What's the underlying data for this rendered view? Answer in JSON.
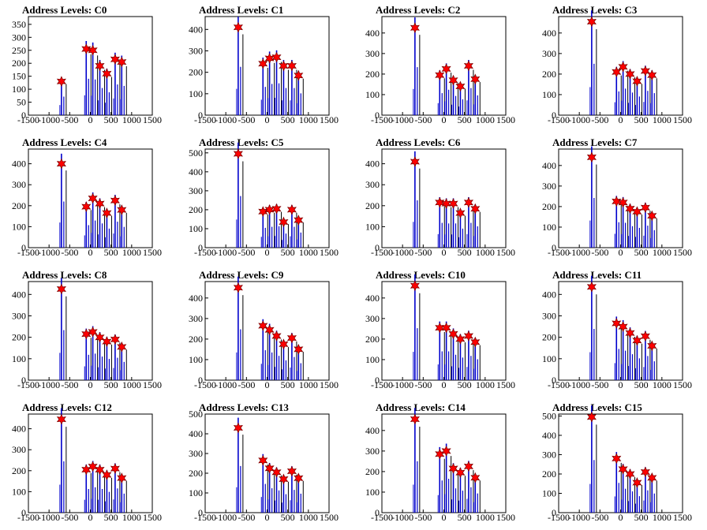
{
  "chart_data": [
    {
      "type": "bar",
      "title": "Address Levels: C0",
      "xlim": [
        -1500,
        1500
      ],
      "ylim": [
        0,
        380
      ],
      "yticks": [
        0,
        50,
        100,
        150,
        200,
        250,
        300,
        350
      ],
      "peaks": [
        {
          "x": -700,
          "y": 130
        },
        {
          "x": -100,
          "y": 255
        },
        {
          "x": 60,
          "y": 250
        },
        {
          "x": 230,
          "y": 190
        },
        {
          "x": 400,
          "y": 160
        },
        {
          "x": 600,
          "y": 215
        },
        {
          "x": 760,
          "y": 205
        }
      ]
    },
    {
      "type": "bar",
      "title": "Address Levels: C1",
      "xlim": [
        -1500,
        1500
      ],
      "ylim": [
        0,
        460
      ],
      "yticks": [
        0,
        100,
        200,
        300,
        400
      ],
      "peaks": [
        {
          "x": -700,
          "y": 410
        },
        {
          "x": -100,
          "y": 240
        },
        {
          "x": 60,
          "y": 265
        },
        {
          "x": 230,
          "y": 270
        },
        {
          "x": 400,
          "y": 230
        },
        {
          "x": 600,
          "y": 230
        },
        {
          "x": 760,
          "y": 185
        }
      ]
    },
    {
      "type": "bar",
      "title": "Address Levels: C2",
      "xlim": [
        -1500,
        1500
      ],
      "ylim": [
        0,
        480
      ],
      "yticks": [
        0,
        100,
        200,
        300,
        400
      ],
      "peaks": [
        {
          "x": -700,
          "y": 425
        },
        {
          "x": -100,
          "y": 195
        },
        {
          "x": 60,
          "y": 225
        },
        {
          "x": 230,
          "y": 170
        },
        {
          "x": 400,
          "y": 140
        },
        {
          "x": 600,
          "y": 240
        },
        {
          "x": 760,
          "y": 175
        }
      ]
    },
    {
      "type": "bar",
      "title": "Address Levels: C3",
      "xlim": [
        -1500,
        1500
      ],
      "ylim": [
        0,
        480
      ],
      "yticks": [
        0,
        100,
        200,
        300,
        400
      ],
      "peaks": [
        {
          "x": -700,
          "y": 455
        },
        {
          "x": -100,
          "y": 210
        },
        {
          "x": 60,
          "y": 235
        },
        {
          "x": 230,
          "y": 200
        },
        {
          "x": 400,
          "y": 165
        },
        {
          "x": 600,
          "y": 215
        },
        {
          "x": 760,
          "y": 195
        }
      ]
    },
    {
      "type": "bar",
      "title": "Address Levels: C4",
      "xlim": [
        -1500,
        1500
      ],
      "ylim": [
        0,
        470
      ],
      "yticks": [
        0,
        100,
        200,
        300,
        400
      ],
      "peaks": [
        {
          "x": -700,
          "y": 400
        },
        {
          "x": -100,
          "y": 195
        },
        {
          "x": 60,
          "y": 235
        },
        {
          "x": 230,
          "y": 210
        },
        {
          "x": 400,
          "y": 165
        },
        {
          "x": 600,
          "y": 225
        },
        {
          "x": 760,
          "y": 180
        }
      ]
    },
    {
      "type": "bar",
      "title": "Address Levels: C5",
      "xlim": [
        -1500,
        1500
      ],
      "ylim": [
        0,
        520
      ],
      "yticks": [
        0,
        100,
        200,
        300,
        400,
        500
      ],
      "peaks": [
        {
          "x": -700,
          "y": 495
        },
        {
          "x": -100,
          "y": 190
        },
        {
          "x": 60,
          "y": 200
        },
        {
          "x": 230,
          "y": 205
        },
        {
          "x": 400,
          "y": 135
        },
        {
          "x": 600,
          "y": 200
        },
        {
          "x": 760,
          "y": 145
        }
      ]
    },
    {
      "type": "bar",
      "title": "Address Levels: C6",
      "xlim": [
        -1500,
        1500
      ],
      "ylim": [
        0,
        470
      ],
      "yticks": [
        0,
        100,
        200,
        300,
        400
      ],
      "peaks": [
        {
          "x": -700,
          "y": 410
        },
        {
          "x": -100,
          "y": 215
        },
        {
          "x": 60,
          "y": 210
        },
        {
          "x": 230,
          "y": 210
        },
        {
          "x": 400,
          "y": 165
        },
        {
          "x": 600,
          "y": 215
        },
        {
          "x": 760,
          "y": 185
        }
      ]
    },
    {
      "type": "bar",
      "title": "Address Levels: C7",
      "xlim": [
        -1500,
        1500
      ],
      "ylim": [
        0,
        480
      ],
      "yticks": [
        0,
        100,
        200,
        300,
        400
      ],
      "peaks": [
        {
          "x": -700,
          "y": 440
        },
        {
          "x": -100,
          "y": 225
        },
        {
          "x": 60,
          "y": 220
        },
        {
          "x": 230,
          "y": 190
        },
        {
          "x": 400,
          "y": 175
        },
        {
          "x": 600,
          "y": 195
        },
        {
          "x": 760,
          "y": 155
        }
      ]
    },
    {
      "type": "bar",
      "title": "Address Levels: C8",
      "xlim": [
        -1500,
        1500
      ],
      "ylim": [
        0,
        460
      ],
      "yticks": [
        0,
        100,
        200,
        300,
        400
      ],
      "peaks": [
        {
          "x": -700,
          "y": 425
        },
        {
          "x": -100,
          "y": 215
        },
        {
          "x": 60,
          "y": 225
        },
        {
          "x": 230,
          "y": 200
        },
        {
          "x": 400,
          "y": 180
        },
        {
          "x": 600,
          "y": 190
        },
        {
          "x": 760,
          "y": 155
        }
      ]
    },
    {
      "type": "bar",
      "title": "Address Levels: C9",
      "xlim": [
        -1500,
        1500
      ],
      "ylim": [
        0,
        480
      ],
      "yticks": [
        0,
        100,
        200,
        300,
        400
      ],
      "peaks": [
        {
          "x": -700,
          "y": 450
        },
        {
          "x": -100,
          "y": 265
        },
        {
          "x": 60,
          "y": 245
        },
        {
          "x": 230,
          "y": 215
        },
        {
          "x": 400,
          "y": 175
        },
        {
          "x": 600,
          "y": 205
        },
        {
          "x": 760,
          "y": 150
        }
      ]
    },
    {
      "type": "bar",
      "title": "Address Levels: C10",
      "xlim": [
        -1500,
        1500
      ],
      "ylim": [
        0,
        480
      ],
      "yticks": [
        0,
        100,
        200,
        300,
        400
      ],
      "peaks": [
        {
          "x": -700,
          "y": 460
        },
        {
          "x": -100,
          "y": 255
        },
        {
          "x": 60,
          "y": 255
        },
        {
          "x": 230,
          "y": 225
        },
        {
          "x": 400,
          "y": 200
        },
        {
          "x": 600,
          "y": 215
        },
        {
          "x": 760,
          "y": 185
        }
      ]
    },
    {
      "type": "bar",
      "title": "Address Levels: C11",
      "xlim": [
        -1500,
        1500
      ],
      "ylim": [
        0,
        460
      ],
      "yticks": [
        0,
        100,
        200,
        300,
        400
      ],
      "peaks": [
        {
          "x": -700,
          "y": 435
        },
        {
          "x": -100,
          "y": 265
        },
        {
          "x": 60,
          "y": 250
        },
        {
          "x": 230,
          "y": 220
        },
        {
          "x": 400,
          "y": 185
        },
        {
          "x": 600,
          "y": 205
        },
        {
          "x": 760,
          "y": 160
        }
      ]
    },
    {
      "type": "bar",
      "title": "Address Levels: C12",
      "xlim": [
        -1500,
        1500
      ],
      "ylim": [
        0,
        470
      ],
      "yticks": [
        0,
        100,
        200,
        300,
        400
      ],
      "peaks": [
        {
          "x": -700,
          "y": 445
        },
        {
          "x": -100,
          "y": 205
        },
        {
          "x": 60,
          "y": 220
        },
        {
          "x": 230,
          "y": 205
        },
        {
          "x": 400,
          "y": 180
        },
        {
          "x": 600,
          "y": 210
        },
        {
          "x": 760,
          "y": 165
        }
      ]
    },
    {
      "type": "bar",
      "title": "Address Levels: C13",
      "xlim": [
        -1500,
        1500
      ],
      "ylim": [
        0,
        500
      ],
      "yticks": [
        0,
        100,
        200,
        300,
        400,
        500
      ],
      "peaks": [
        {
          "x": -700,
          "y": 430
        },
        {
          "x": -100,
          "y": 265
        },
        {
          "x": 60,
          "y": 225
        },
        {
          "x": 230,
          "y": 205
        },
        {
          "x": 400,
          "y": 170
        },
        {
          "x": 600,
          "y": 210
        },
        {
          "x": 760,
          "y": 175
        }
      ]
    },
    {
      "type": "bar",
      "title": "Address Levels: C14",
      "xlim": [
        -1500,
        1500
      ],
      "ylim": [
        0,
        480
      ],
      "yticks": [
        0,
        100,
        200,
        300,
        400
      ],
      "peaks": [
        {
          "x": -700,
          "y": 455
        },
        {
          "x": -100,
          "y": 285
        },
        {
          "x": 60,
          "y": 300
        },
        {
          "x": 230,
          "y": 215
        },
        {
          "x": 400,
          "y": 195
        },
        {
          "x": 600,
          "y": 225
        },
        {
          "x": 760,
          "y": 170
        }
      ]
    },
    {
      "type": "bar",
      "title": "Address Levels: C15",
      "xlim": [
        -1500,
        1500
      ],
      "ylim": [
        0,
        510
      ],
      "yticks": [
        0,
        100,
        200,
        300,
        400,
        500
      ],
      "peaks": [
        {
          "x": -700,
          "y": 495
        },
        {
          "x": -100,
          "y": 280
        },
        {
          "x": 60,
          "y": 225
        },
        {
          "x": 230,
          "y": 200
        },
        {
          "x": 400,
          "y": 155
        },
        {
          "x": 600,
          "y": 210
        },
        {
          "x": 760,
          "y": 180
        }
      ]
    }
  ],
  "xticks": [
    -1500,
    -1000,
    -500,
    0,
    500,
    1000,
    1500
  ],
  "colors": {
    "bars": "#0000cc",
    "bar_shadow": "#000000",
    "marker": "#ff0000",
    "marker_edge": "#800000",
    "axis": "#000000"
  }
}
